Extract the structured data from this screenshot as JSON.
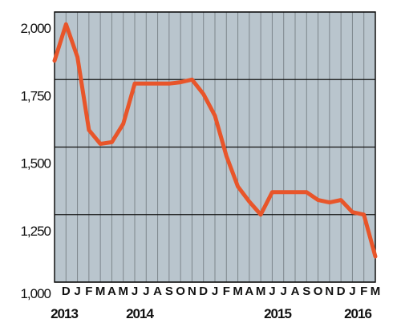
{
  "chart_data": {
    "type": "line",
    "categories": [
      null,
      "D",
      "J",
      "F",
      "M",
      "A",
      "M",
      "J",
      "J",
      "A",
      "S",
      "O",
      "N",
      "D",
      "J",
      "F",
      "M",
      "A",
      "M",
      "J",
      "J",
      "A",
      "S",
      "O",
      "N",
      "D",
      "J",
      "F",
      "M"
    ],
    "year_labels": [
      "2013",
      "2014",
      "2015",
      "2016"
    ],
    "series": [
      {
        "color": "#e8552a",
        "values": [
          1820,
          1955,
          1833,
          1563,
          1512,
          1518,
          1586,
          1735,
          1735,
          1735,
          1735,
          1740,
          1750,
          1696,
          1616,
          1467,
          1354,
          1298,
          1250,
          1333,
          1333,
          1333,
          1333,
          1304,
          1295,
          1304,
          1259,
          1250,
          1095
        ]
      }
    ],
    "ylim": [
      1000,
      2000
    ],
    "yticks": [
      {
        "value": 1000,
        "label": "1,000"
      },
      {
        "value": 1250,
        "label": "1,250"
      },
      {
        "value": 1500,
        "label": "1,500"
      },
      {
        "value": 1750,
        "label": "1,750"
      },
      {
        "value": 2000,
        "label": "2,000"
      }
    ],
    "grid": true,
    "background": "#b9c5cd"
  }
}
